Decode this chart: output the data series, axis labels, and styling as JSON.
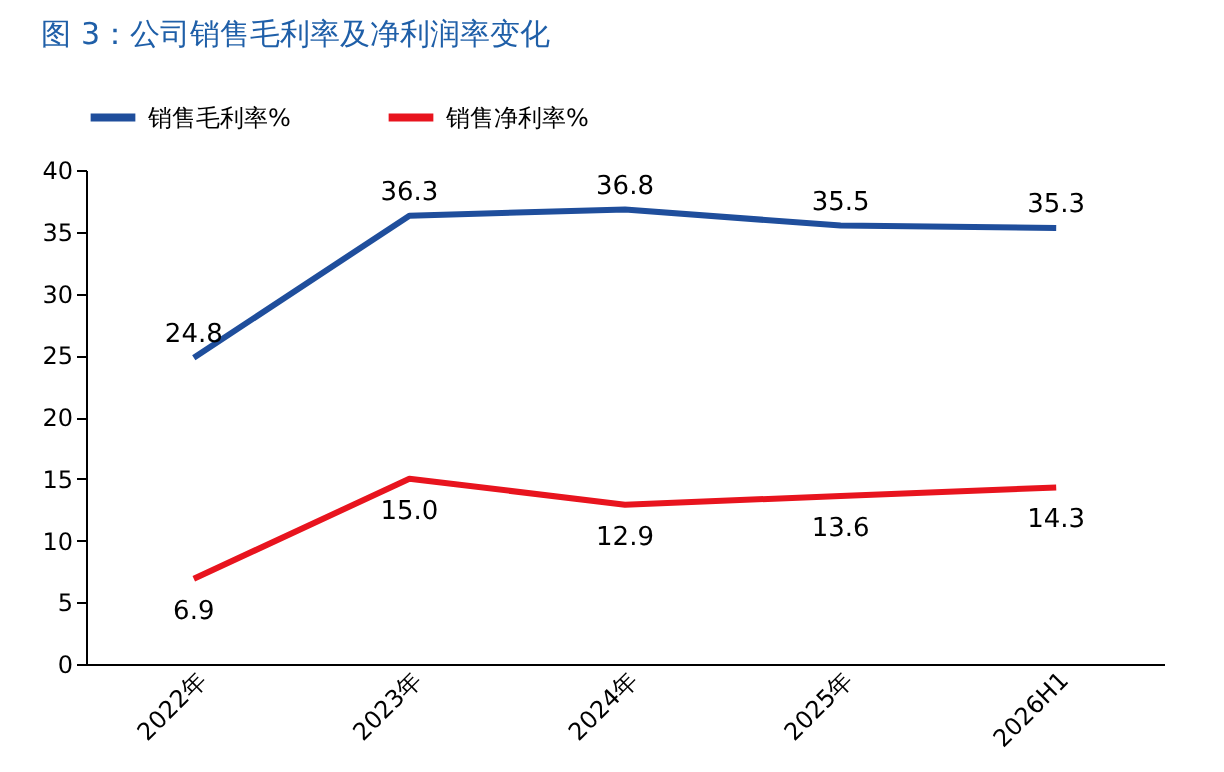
{
  "chart_data": {
    "type": "line",
    "title": "图 3：公司销售毛利率及净利润率变化",
    "categories": [
      "2022年",
      "2023年",
      "2024年",
      "2025年",
      "2026H1"
    ],
    "series": [
      {
        "name": "销售毛利率%",
        "color": "#1f4e9c",
        "values": [
          24.8,
          36.3,
          36.8,
          35.5,
          35.3
        ],
        "value_labels": [
          "24.8",
          "36.3",
          "36.8",
          "35.5",
          "35.3"
        ]
      },
      {
        "name": "销售净利率%",
        "color": "#e8141e",
        "values": [
          6.9,
          15.0,
          12.9,
          13.6,
          14.3
        ],
        "value_labels": [
          "6.9",
          "15.0",
          "12.9",
          "13.6",
          "14.3"
        ]
      }
    ],
    "ylim": [
      0,
      40
    ],
    "yticks": [
      0,
      5,
      10,
      15,
      20,
      25,
      30,
      35,
      40
    ],
    "grid": false,
    "legend": "top",
    "marker": "none",
    "line_style": "solid"
  }
}
